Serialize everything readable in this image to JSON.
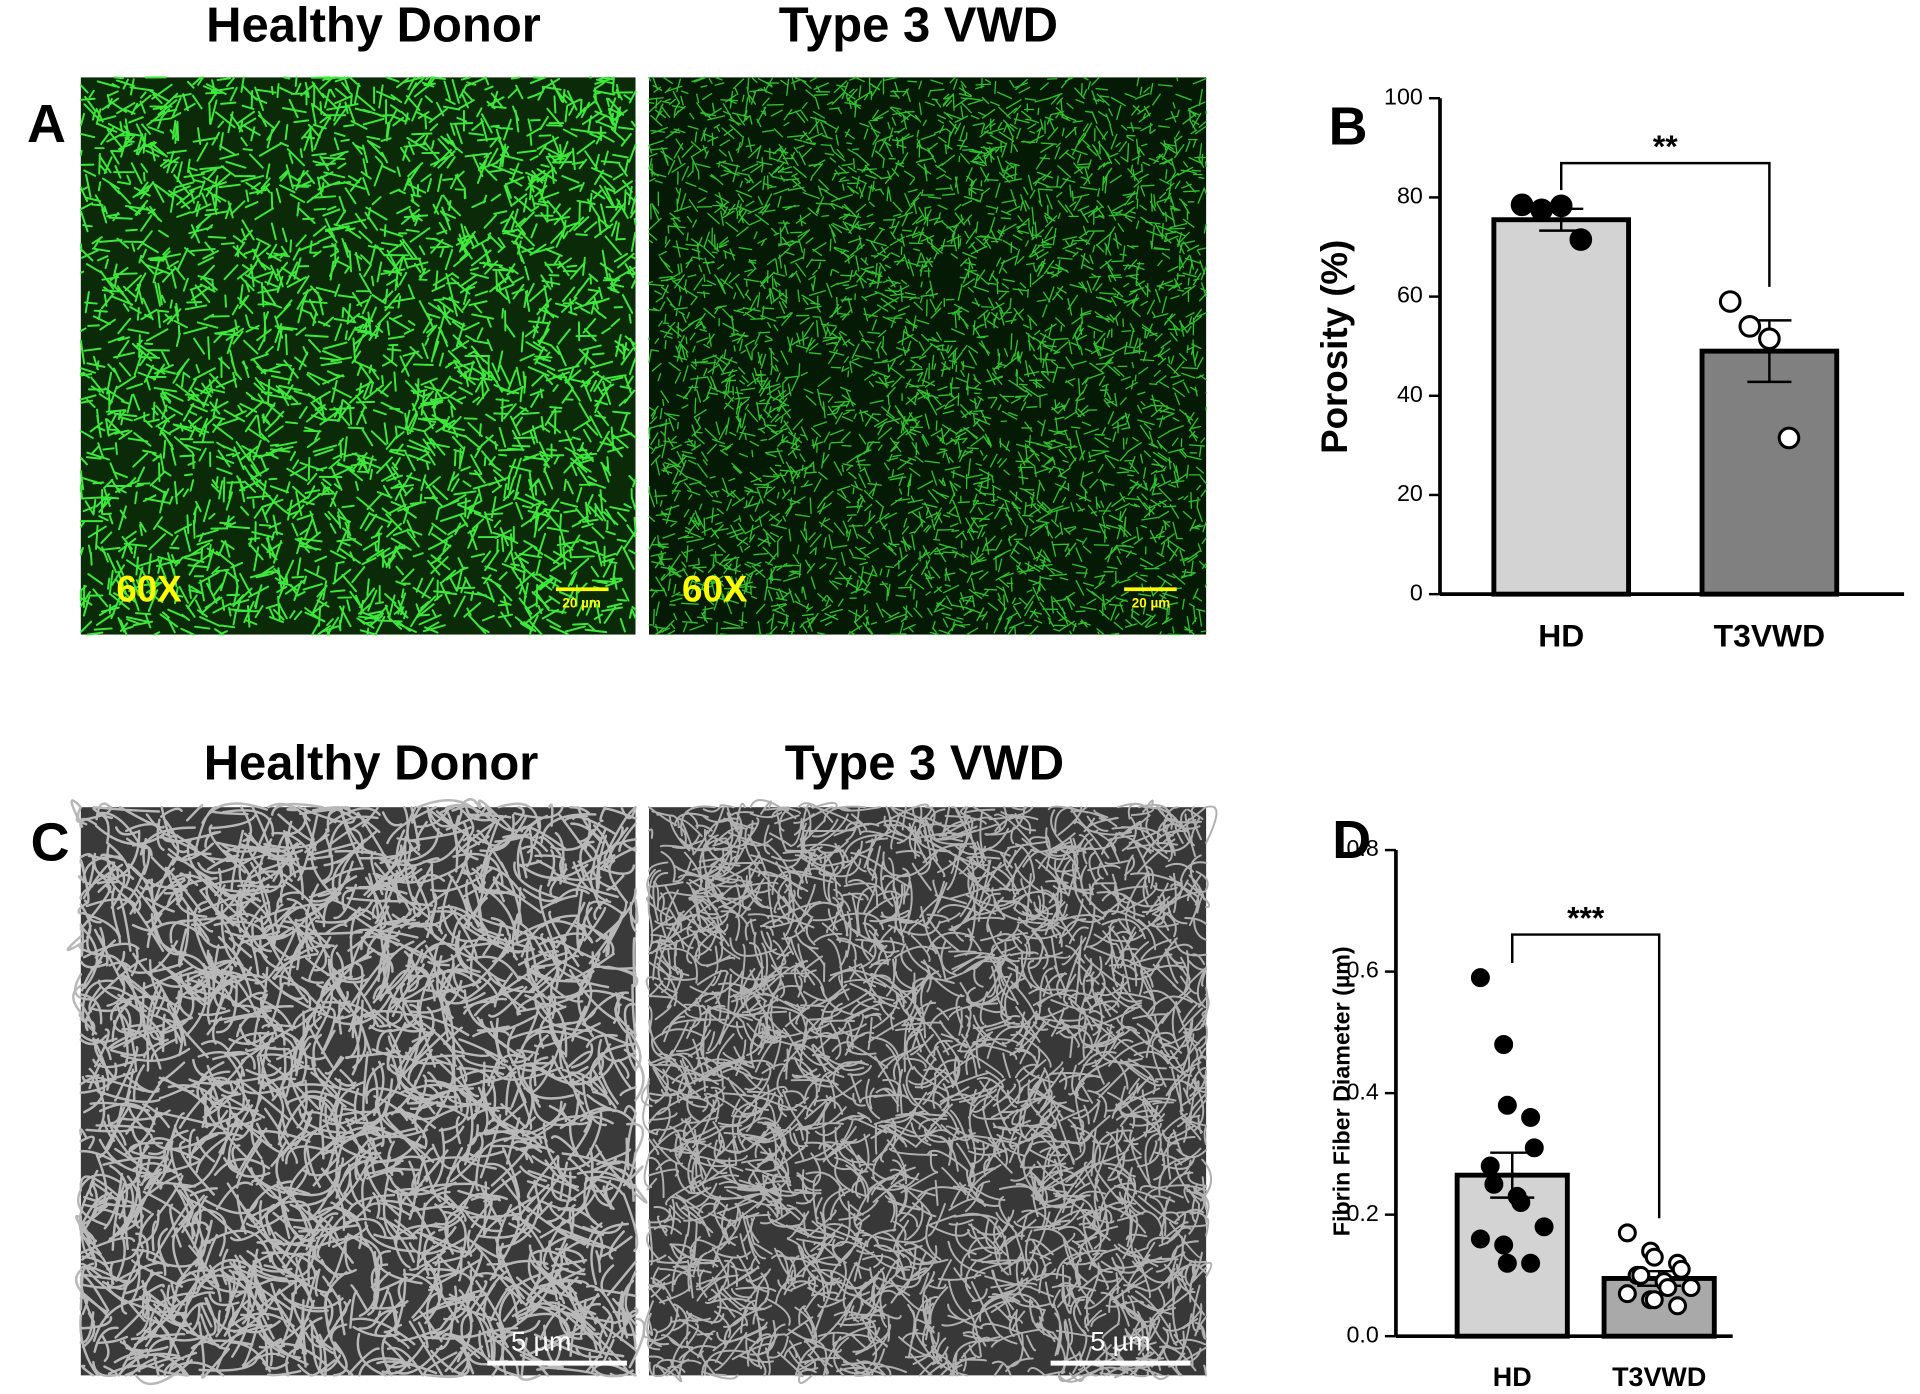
{
  "figure": {
    "panel_a": {
      "label": "A",
      "titles": [
        "Healthy Donor",
        "Type 3 VWD"
      ],
      "magnification": [
        "60X",
        "60X"
      ],
      "scale_bar": [
        "20 µm",
        "20 µm"
      ]
    },
    "panel_c": {
      "label": "C",
      "titles": [
        "Healthy Donor",
        "Type 3 VWD"
      ],
      "scale_bar": [
        "5 µm",
        "5 µm"
      ]
    }
  },
  "chart_data": [
    {
      "type": "bar",
      "panel_label": "B",
      "y_label": "Porosity (%)",
      "categories": [
        "HD",
        "T3VWD"
      ],
      "values": [
        75.5,
        49
      ],
      "errors": [
        2.2,
        6.2
      ],
      "colors": [
        "#d3d3d3",
        "#808080"
      ],
      "point_colors": [
        "#000000",
        "#ffffff"
      ],
      "points": [
        [
          78.5,
          77.5,
          78.3,
          71.5
        ],
        [
          59,
          54,
          51.5,
          31.5
        ]
      ],
      "annotation": "**",
      "ylim": [
        0,
        100
      ],
      "yticks": [
        0,
        20,
        40,
        60,
        80,
        100
      ]
    },
    {
      "type": "bar",
      "panel_label": "D",
      "y_label": "Fibrin Fiber Diameter (µm)",
      "categories": [
        "HD",
        "T3VWD"
      ],
      "values": [
        0.265,
        0.095
      ],
      "errors": [
        0.037,
        0.012
      ],
      "colors": [
        "#d3d3d3",
        "#a9a9a9"
      ],
      "point_colors": [
        "#000000",
        "#ffffff"
      ],
      "points": [
        [
          0.59,
          0.48,
          0.38,
          0.36,
          0.31,
          0.28,
          0.25,
          0.23,
          0.22,
          0.18,
          0.16,
          0.15,
          0.12,
          0.12
        ],
        [
          0.17,
          0.14,
          0.13,
          0.12,
          0.11,
          0.1,
          0.1,
          0.09,
          0.08,
          0.08,
          0.07,
          0.06,
          0.06,
          0.05
        ]
      ],
      "annotation": "***",
      "ylim": [
        0,
        0.8
      ],
      "yticks": [
        {
          "value": 0,
          "label": "0.0"
        },
        0.2,
        0.4,
        0.6,
        0.8
      ]
    }
  ]
}
